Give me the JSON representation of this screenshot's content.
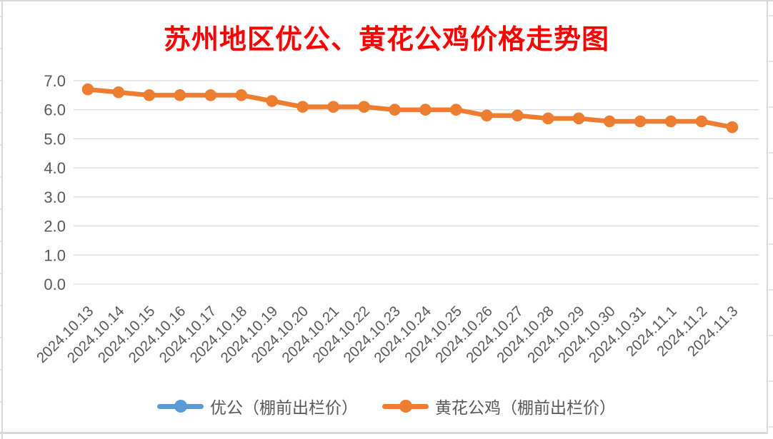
{
  "title": {
    "text": "苏州地区优公、黄花公鸡价格走势图",
    "color": "#FF0000"
  },
  "chart_data": {
    "type": "line",
    "title": "苏州地区优公、黄花公鸡价格走势图",
    "categories": [
      "2024.10.13",
      "2024.10.14",
      "2024.10.15",
      "2024.10.16",
      "2024.10.17",
      "2024.10.18",
      "2024.10.19",
      "2024.10.20",
      "2024.10.21",
      "2024.10.22",
      "2024.10.23",
      "2024.10.24",
      "2024.10.25",
      "2024.10.26",
      "2024.10.27",
      "2024.10.28",
      "2024.10.29",
      "2024.10.30",
      "2024.10.31",
      "2024.11.1",
      "2024.11.2",
      "2024.11.3"
    ],
    "series": [
      {
        "name": "优公（棚前出栏价）",
        "color": "#5B9BD5",
        "values": []
      },
      {
        "name": "黄花公鸡（棚前出栏价）",
        "color": "#ED7D31",
        "values": [
          6.7,
          6.6,
          6.5,
          6.5,
          6.5,
          6.5,
          6.3,
          6.1,
          6.1,
          6.1,
          6.0,
          6.0,
          6.0,
          5.8,
          5.8,
          5.7,
          5.7,
          5.6,
          5.6,
          5.6,
          5.6,
          5.4
        ]
      }
    ],
    "xlabel": "",
    "ylabel": "",
    "ylim": [
      0.0,
      7.0
    ],
    "ytick_step": 1.0,
    "ytick_labels": [
      "0.0",
      "1.0",
      "2.0",
      "3.0",
      "4.0",
      "5.0",
      "6.0",
      "7.0"
    ],
    "grid": true,
    "legend_position": "bottom"
  },
  "colors": {
    "gridline": "#D9D9D9",
    "axis_text": "#595959",
    "border": "#D9D9D9",
    "background": "#FFFFFF"
  }
}
